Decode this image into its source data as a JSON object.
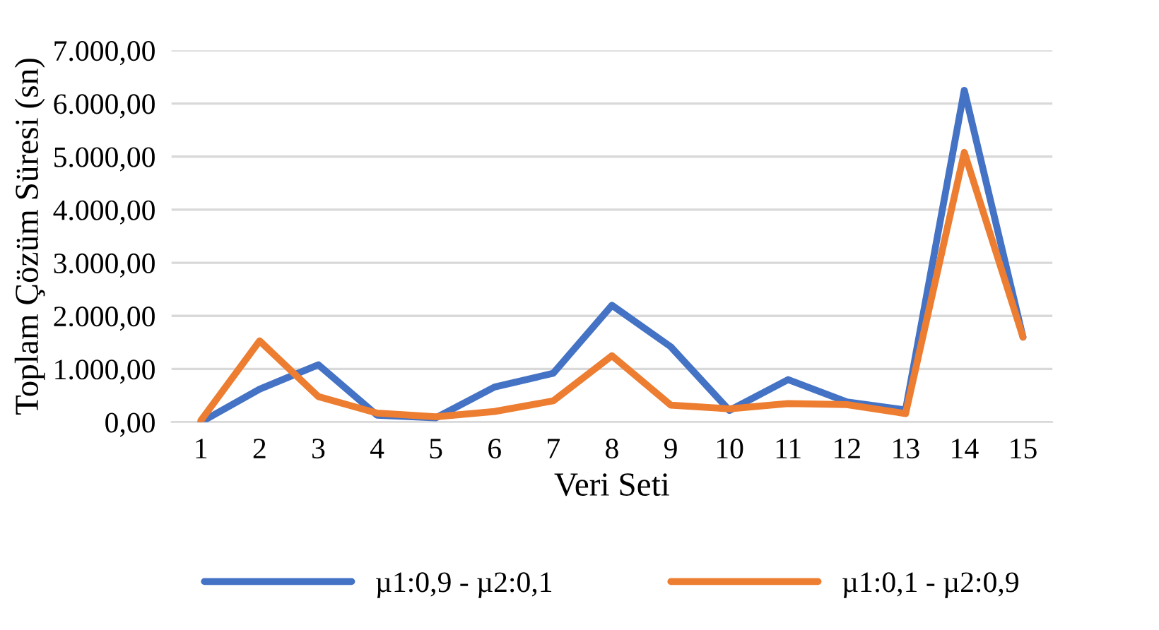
{
  "chart_data": {
    "type": "line",
    "xlabel": "Veri Seti",
    "ylabel": "Toplam Çözüm Süresi (sn)",
    "categories": [
      "1",
      "2",
      "3",
      "4",
      "5",
      "6",
      "7",
      "8",
      "9",
      "10",
      "11",
      "12",
      "13",
      "14",
      "15"
    ],
    "series": [
      {
        "name": "µ1:0,9 - µ2:0,1",
        "color": "#4472c4",
        "values": [
          0,
          620,
          1080,
          130,
          80,
          660,
          920,
          2200,
          1420,
          220,
          800,
          380,
          230,
          6250,
          1600
        ]
      },
      {
        "name": "µ1:0,1 - µ2:0,9",
        "color": "#ed7d31",
        "values": [
          30,
          1530,
          480,
          170,
          100,
          200,
          400,
          1250,
          320,
          250,
          350,
          330,
          160,
          5080,
          1600
        ]
      }
    ],
    "ylim": [
      0,
      7000
    ],
    "yticks": [
      {
        "value": 0,
        "label": "0,00"
      },
      {
        "value": 1000,
        "label": "1.000,00"
      },
      {
        "value": 2000,
        "label": "2.000,00"
      },
      {
        "value": 3000,
        "label": "3.000,00"
      },
      {
        "value": 4000,
        "label": "4.000,00"
      },
      {
        "value": 5000,
        "label": "5.000,00"
      },
      {
        "value": 6000,
        "label": "6.000,00"
      },
      {
        "value": 7000,
        "label": "7.000,00"
      }
    ],
    "grid": "y",
    "legend": "bottom",
    "marker": "none",
    "line_style": "solid"
  }
}
